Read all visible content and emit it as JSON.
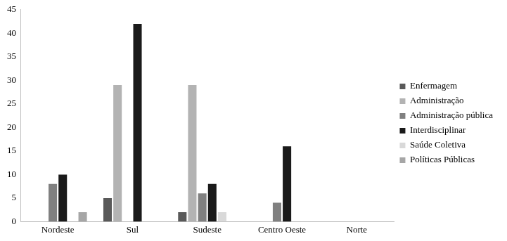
{
  "chart_data": {
    "type": "bar",
    "categories": [
      "Nordeste",
      "Sul",
      "Sudeste",
      "Centro Oeste",
      "Norte"
    ],
    "series": [
      {
        "name": "Enfermagem",
        "color": "#595959",
        "values": [
          0,
          5,
          2,
          0,
          0
        ]
      },
      {
        "name": "Administração",
        "color": "#b3b3b3",
        "values": [
          0,
          29,
          29,
          0,
          0
        ]
      },
      {
        "name": "Administração pública",
        "color": "#808080",
        "values": [
          8,
          0,
          6,
          4,
          0
        ]
      },
      {
        "name": "Interdisciplinar",
        "color": "#1a1a1a",
        "values": [
          10,
          42,
          8,
          16,
          0
        ]
      },
      {
        "name": "Saúde Coletiva",
        "color": "#d9d9d9",
        "values": [
          0,
          0,
          2,
          0,
          0
        ]
      },
      {
        "name": "Políticas Públicas",
        "color": "#a6a6a6",
        "values": [
          2,
          0,
          0,
          0,
          0
        ]
      }
    ],
    "ylim": [
      0,
      45
    ],
    "yticks": [
      0,
      5,
      10,
      15,
      20,
      25,
      30,
      35,
      40,
      45
    ],
    "grid": false,
    "legend": "right"
  }
}
